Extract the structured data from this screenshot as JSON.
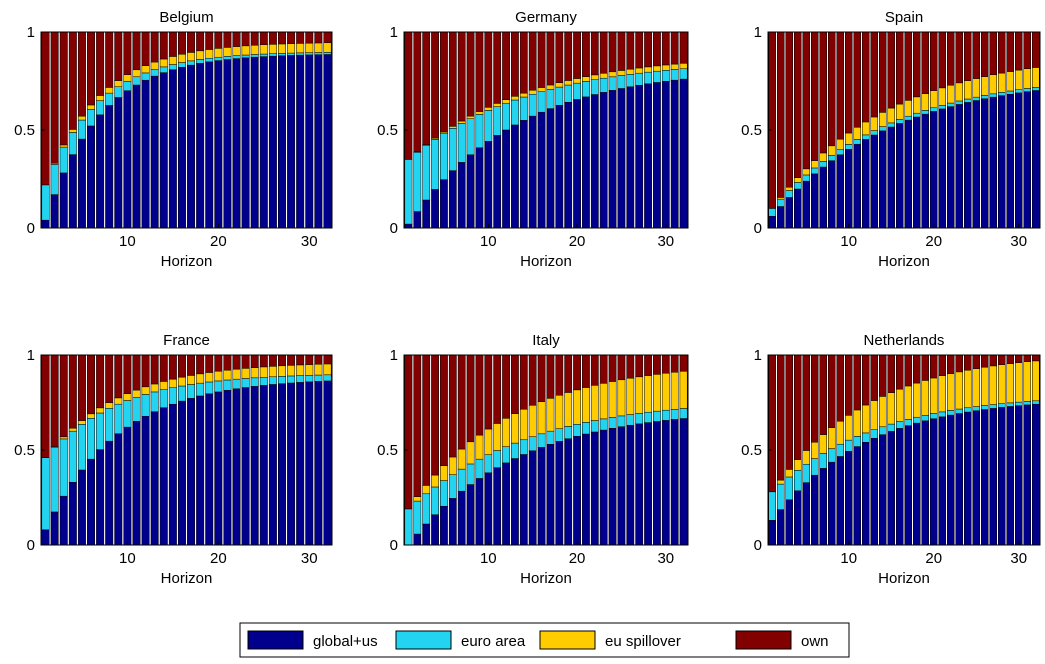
{
  "chart_data": {
    "type": "bar",
    "stacked": true,
    "x": [
      1,
      2,
      3,
      4,
      5,
      6,
      7,
      8,
      9,
      10,
      11,
      12,
      13,
      14,
      15,
      16,
      17,
      18,
      19,
      20,
      21,
      22,
      23,
      24,
      25,
      26,
      27,
      28,
      29,
      30,
      31,
      32
    ],
    "xticks": [
      10,
      20,
      30
    ],
    "yticks": [
      0,
      0.5,
      1
    ],
    "ylim": [
      0,
      1
    ],
    "xlim": [
      0.5,
      32.5
    ],
    "colors": {
      "global+us": "#00008c",
      "euro area": "#22d4f0",
      "eu spillover": "#ffcc00",
      "own": "#820000"
    },
    "legend": {
      "placement": "bottom-center",
      "entries": [
        "global+us",
        "euro area",
        "eu spillover",
        "own"
      ]
    },
    "panels": [
      {
        "title": "Belgium",
        "xlabel": "Horizon",
        "series": [
          {
            "name": "global+us",
            "params": {
              "start": 0.04,
              "end": 0.89,
              "tau": 6.0
            }
          },
          {
            "name": "euro area",
            "params": {
              "start": 0.18,
              "end": 0.01,
              "tau": 6.0
            }
          },
          {
            "name": "eu spillover",
            "params": {
              "start": 0.0,
              "end": 0.05,
              "tau": 8.0
            }
          }
        ]
      },
      {
        "title": "Germany",
        "xlabel": "Horizon",
        "series": [
          {
            "name": "global+us",
            "params": {
              "start": 0.02,
              "end": 0.82,
              "tau": 12.0
            }
          },
          {
            "name": "euro area",
            "params": {
              "start": 0.33,
              "end": 0.04,
              "tau": 10.0
            }
          },
          {
            "name": "eu spillover",
            "params": {
              "start": 0.0,
              "end": 0.03,
              "tau": 12.0
            }
          }
        ]
      },
      {
        "title": "Spain",
        "xlabel": "Horizon",
        "series": [
          {
            "name": "global+us",
            "params": {
              "start": 0.06,
              "end": 0.78,
              "tau": 14.0
            }
          },
          {
            "name": "euro area",
            "params": {
              "start": 0.04,
              "end": 0.015,
              "tau": 10.0
            }
          },
          {
            "name": "eu spillover",
            "params": {
              "start": 0.0,
              "end": 0.11,
              "tau": 12.0
            }
          }
        ]
      },
      {
        "title": "France",
        "xlabel": "Horizon",
        "series": [
          {
            "name": "global+us",
            "params": {
              "start": 0.08,
              "end": 0.88,
              "tau": 8.0
            }
          },
          {
            "name": "euro area",
            "params": {
              "start": 0.38,
              "end": 0.025,
              "tau": 8.0
            }
          },
          {
            "name": "eu spillover",
            "params": {
              "start": 0.0,
              "end": 0.06,
              "tau": 10.0
            }
          }
        ]
      },
      {
        "title": "Italy",
        "xlabel": "Horizon",
        "series": [
          {
            "name": "global+us",
            "params": {
              "start": 0.0,
              "end": 0.72,
              "tau": 12.0
            }
          },
          {
            "name": "euro area",
            "params": {
              "start": 0.19,
              "end": 0.05,
              "tau": 8.0
            }
          },
          {
            "name": "eu spillover",
            "params": {
              "start": 0.0,
              "end": 0.2,
              "tau": 8.0
            }
          }
        ]
      },
      {
        "title": "Netherlands",
        "xlabel": "Horizon",
        "series": [
          {
            "name": "global+us",
            "params": {
              "start": 0.13,
              "end": 0.78,
              "tau": 11.0
            }
          },
          {
            "name": "euro area",
            "params": {
              "start": 0.15,
              "end": 0.015,
              "tau": 8.0
            }
          },
          {
            "name": "eu spillover",
            "params": {
              "start": 0.0,
              "end": 0.22,
              "tau": 10.0
            }
          }
        ]
      }
    ]
  }
}
